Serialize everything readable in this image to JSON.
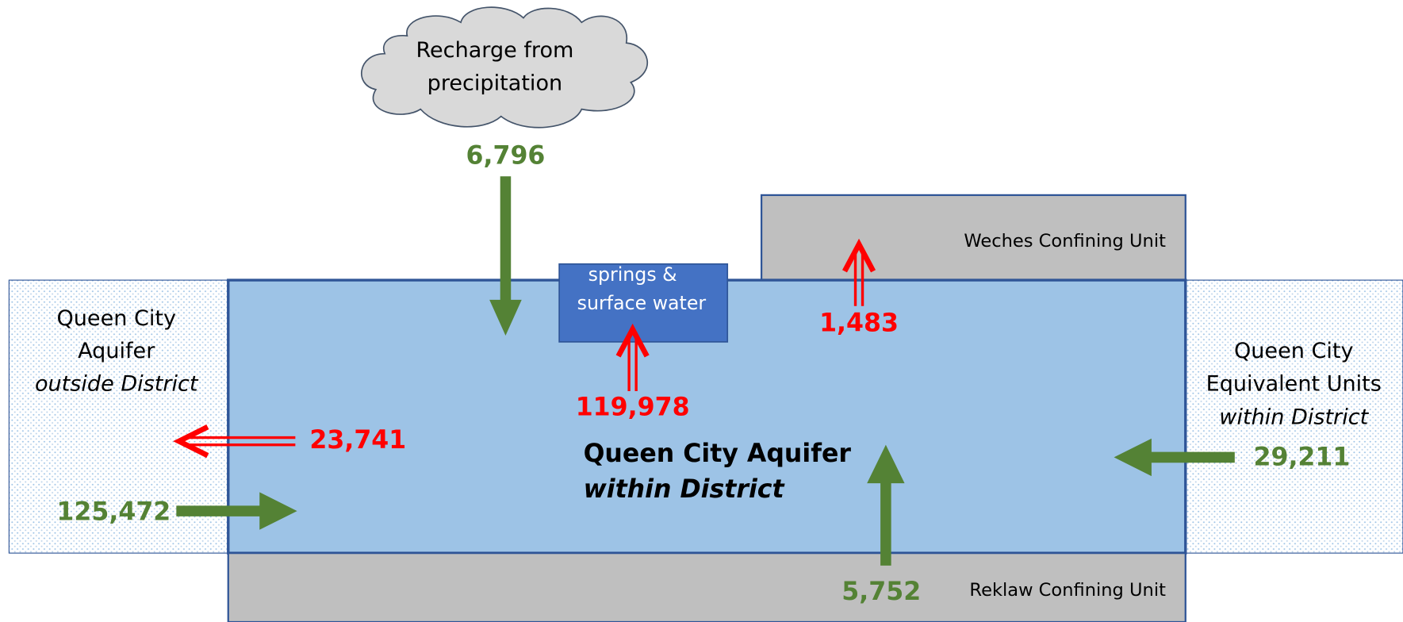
{
  "cloud": {
    "lines": [
      "Recharge from",
      "precipitation"
    ]
  },
  "units": {
    "weches": "Weches Confining Unit",
    "reklaw": "Reklaw Confining Unit",
    "outside": {
      "lines": [
        "Queen City",
        "Aquifer"
      ],
      "italic": "outside District"
    },
    "equivalent": {
      "lines": [
        "Queen City",
        "Equivalent Units"
      ],
      "italic": "within District"
    },
    "main": {
      "bold": "Queen City Aquifer",
      "italic": "within District"
    },
    "springs": {
      "lines": [
        "springs &",
        "surface water"
      ]
    }
  },
  "flows": {
    "recharge": "6,796",
    "springs": "119,978",
    "weches": "1,483",
    "outflow_outside": "23,741",
    "inflow_outside": "125,472",
    "inflow_equivalent": "29,211",
    "reklaw": "5,752"
  }
}
